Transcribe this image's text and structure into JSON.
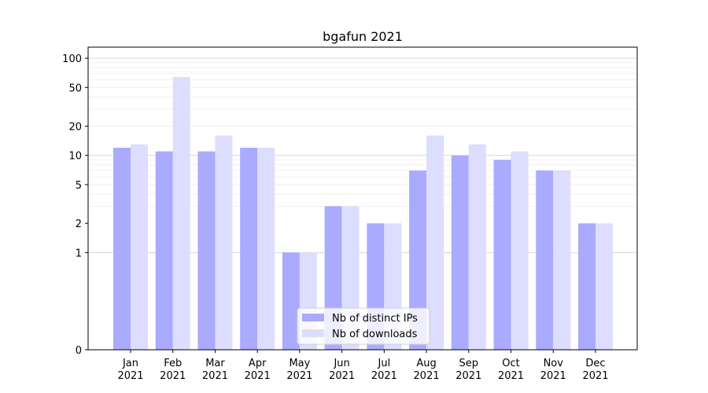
{
  "chart_data": {
    "type": "bar",
    "title": "bgafun 2021",
    "xlabel": "",
    "ylabel": "",
    "categories": [
      {
        "month": "Jan",
        "year": "2021"
      },
      {
        "month": "Feb",
        "year": "2021"
      },
      {
        "month": "Mar",
        "year": "2021"
      },
      {
        "month": "Apr",
        "year": "2021"
      },
      {
        "month": "May",
        "year": "2021"
      },
      {
        "month": "Jun",
        "year": "2021"
      },
      {
        "month": "Jul",
        "year": "2021"
      },
      {
        "month": "Aug",
        "year": "2021"
      },
      {
        "month": "Sep",
        "year": "2021"
      },
      {
        "month": "Oct",
        "year": "2021"
      },
      {
        "month": "Nov",
        "year": "2021"
      },
      {
        "month": "Dec",
        "year": "2021"
      }
    ],
    "series": [
      {
        "name": "Nb of distinct IPs",
        "color": "#aaaaff",
        "values": [
          12,
          11,
          11,
          12,
          1,
          3,
          2,
          7,
          10,
          9,
          7,
          2
        ]
      },
      {
        "name": "Nb of downloads",
        "color": "#ddddff",
        "values": [
          13,
          64,
          16,
          12,
          1,
          3,
          2,
          16,
          13,
          11,
          7,
          2
        ]
      }
    ],
    "y_scale": "symlog",
    "ylim": [
      0,
      130
    ],
    "y_ticks": [
      0,
      1,
      2,
      5,
      10,
      20,
      50,
      100
    ],
    "y_tick_labels": [
      "0",
      "1",
      "2",
      "5",
      "10",
      "20",
      "50",
      "100"
    ],
    "grid": true,
    "legend_position": "bottom-center"
  }
}
